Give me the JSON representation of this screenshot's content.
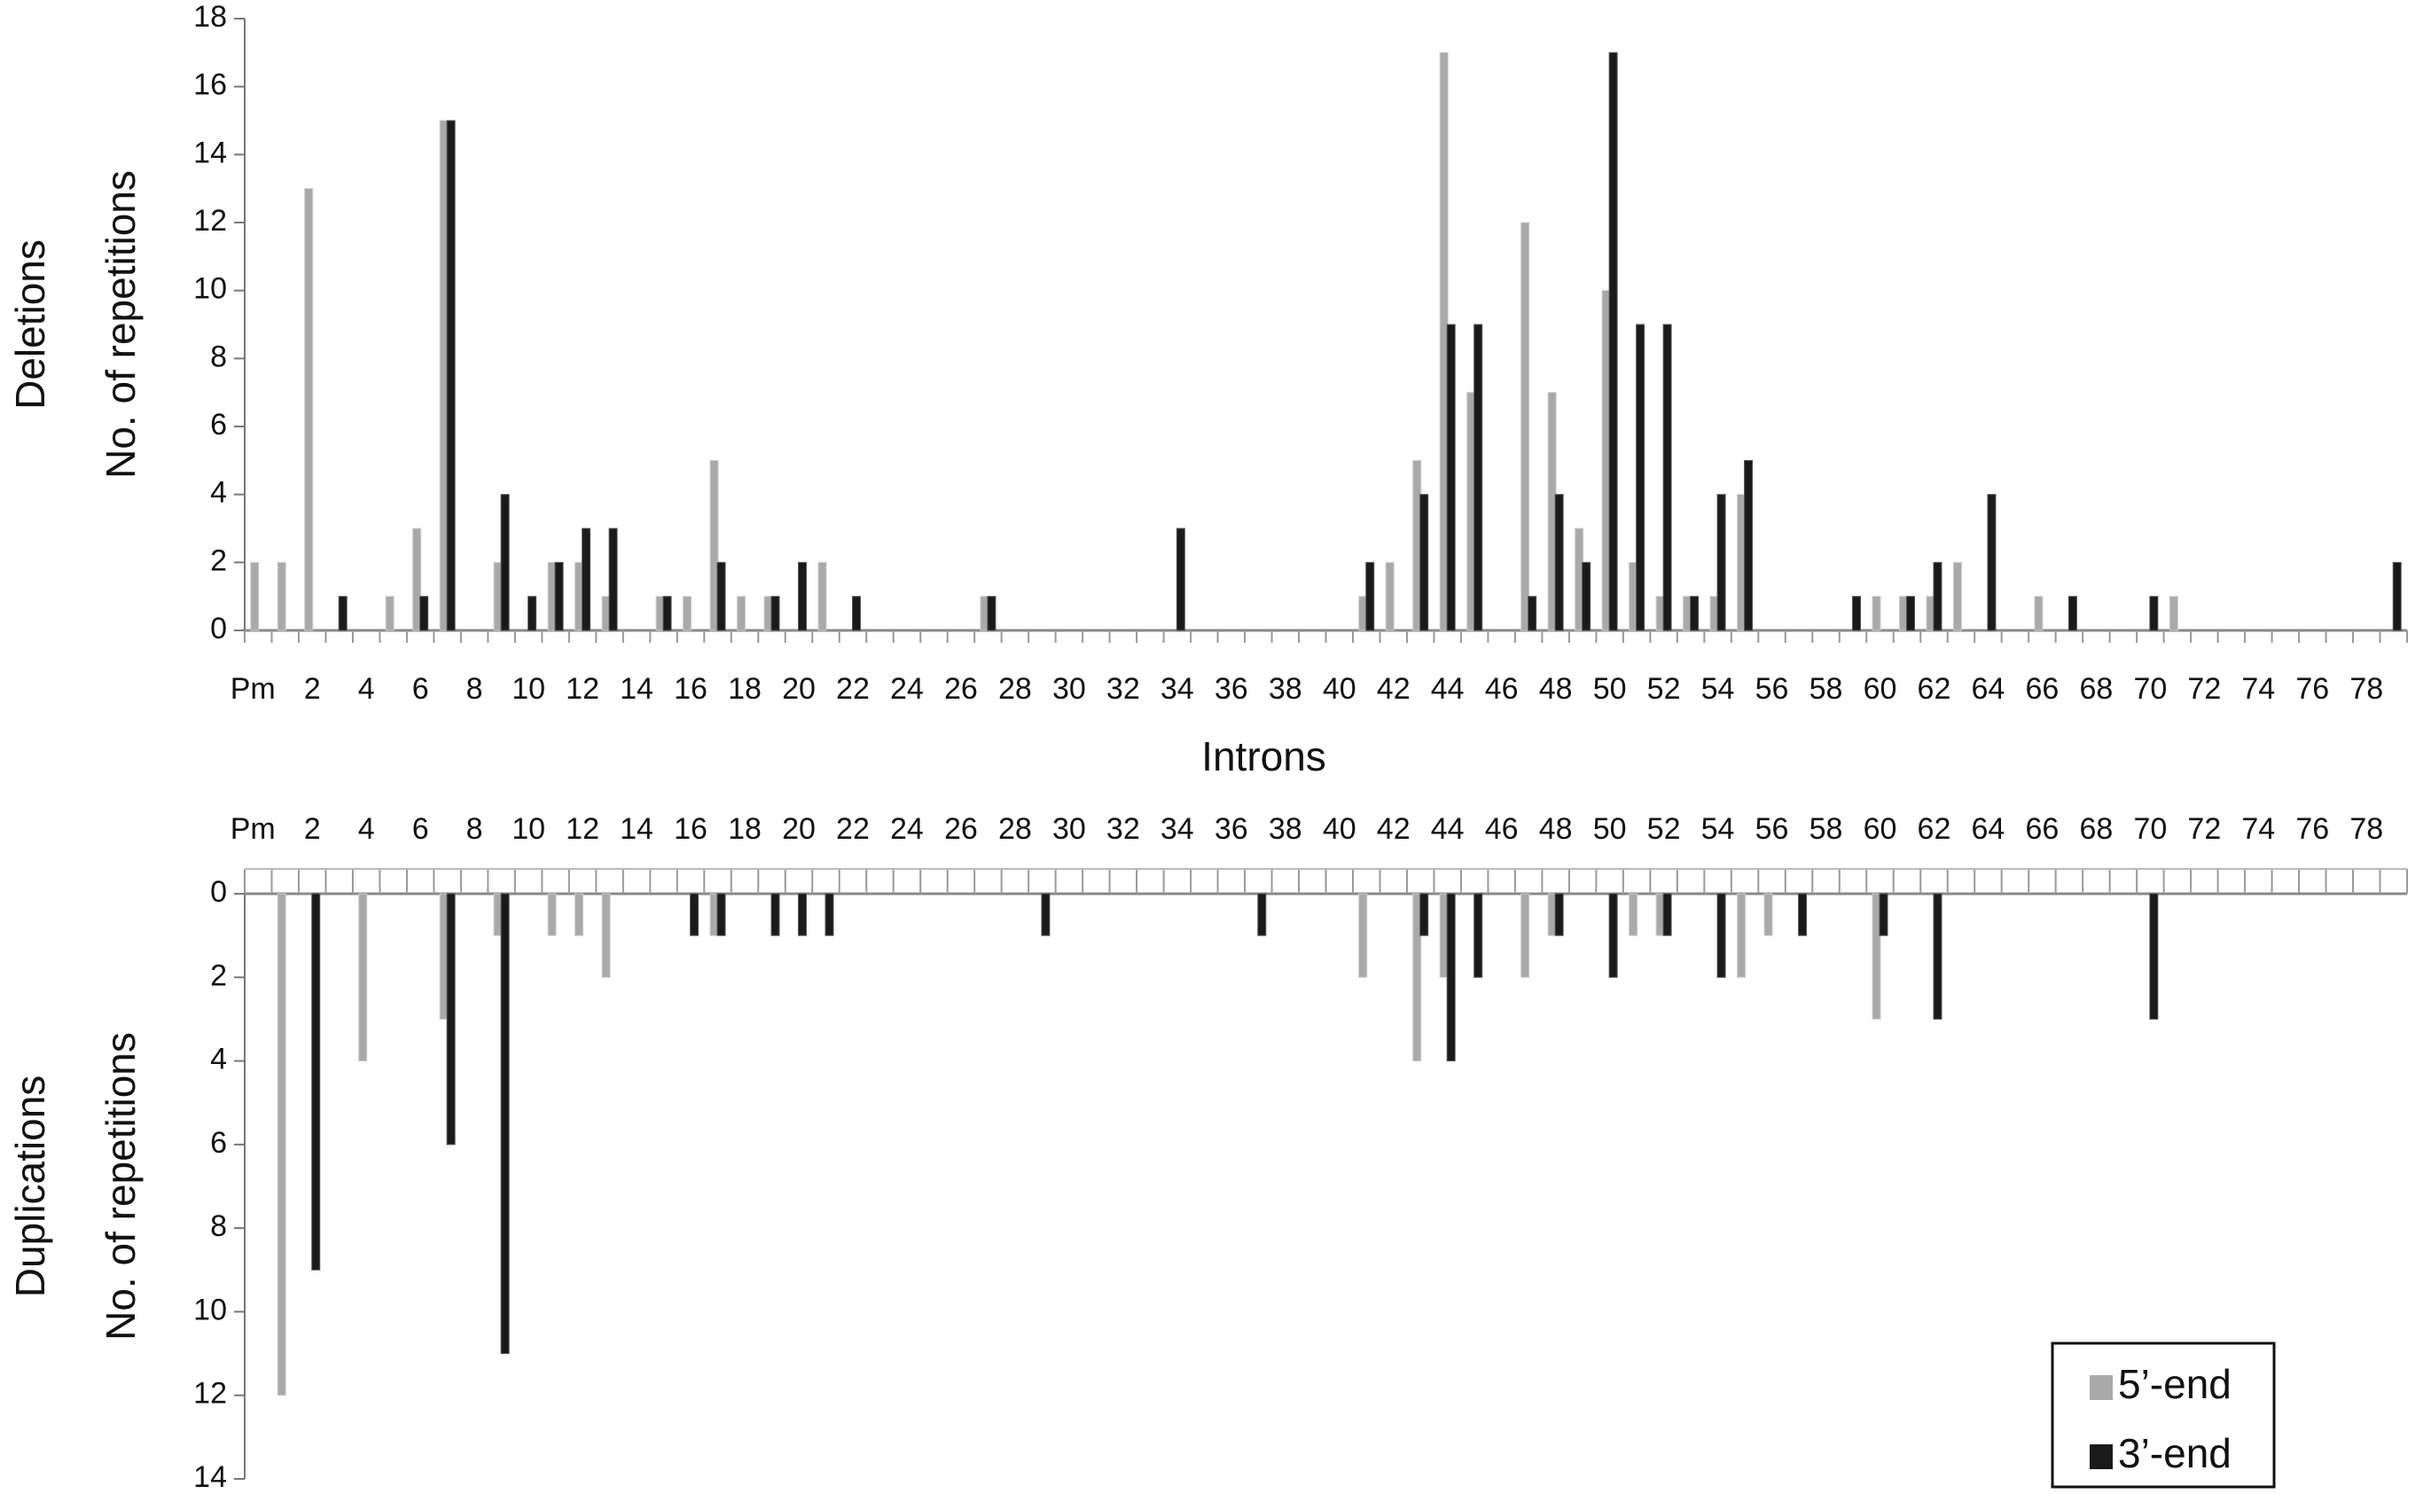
{
  "chart_data": [
    {
      "type": "bar",
      "ylabel_group": "Deletions",
      "ylabel": "No. of repetitions",
      "xlabel": "Introns",
      "categories": [
        "Pm",
        null,
        "2",
        null,
        "4",
        null,
        "6",
        null,
        "8",
        null,
        "10",
        null,
        "12",
        null,
        "14",
        null,
        "16",
        null,
        "18",
        null,
        "20",
        null,
        "22",
        null,
        "24",
        null,
        "26",
        null,
        "28",
        null,
        "30",
        null,
        "32",
        null,
        "34",
        null,
        "36",
        null,
        "38",
        null,
        "40",
        null,
        "42",
        null,
        "44",
        null,
        "46",
        null,
        "48",
        null,
        "50",
        null,
        "52",
        null,
        "54",
        null,
        "56",
        null,
        "58",
        null,
        "60",
        null,
        "62",
        null,
        "64",
        null,
        "66",
        null,
        "68",
        null,
        "70",
        null,
        "72",
        null,
        "74",
        null,
        "76",
        null,
        "78",
        null
      ],
      "series": [
        {
          "color": "#a9a9a9",
          "values": [
            2,
            2,
            13,
            0,
            0,
            1,
            3,
            15,
            0,
            2,
            0,
            2,
            2,
            1,
            0,
            1,
            1,
            5,
            1,
            1,
            0,
            2,
            0,
            0,
            0,
            0,
            0,
            1,
            0,
            0,
            0,
            0,
            0,
            0,
            0,
            0,
            0,
            0,
            0,
            0,
            0,
            1,
            2,
            5,
            17,
            7,
            0,
            12,
            7,
            3,
            10,
            2,
            1,
            1,
            1,
            4,
            0,
            0,
            0,
            0,
            1,
            1,
            1,
            2,
            0,
            0,
            1,
            0,
            0,
            0,
            0,
            1,
            0,
            0,
            0,
            0,
            0,
            0,
            0,
            0
          ]
        },
        {
          "color": "#1a1a1a",
          "values": [
            0,
            0,
            0,
            1,
            0,
            0,
            1,
            15,
            0,
            4,
            1,
            2,
            3,
            3,
            0,
            1,
            0,
            2,
            0,
            1,
            2,
            0,
            1,
            0,
            0,
            0,
            0,
            1,
            0,
            0,
            0,
            0,
            0,
            0,
            3,
            0,
            0,
            0,
            0,
            0,
            0,
            2,
            0,
            4,
            9,
            9,
            0,
            1,
            4,
            2,
            17,
            9,
            9,
            1,
            4,
            5,
            0,
            0,
            0,
            1,
            0,
            1,
            2,
            0,
            4,
            0,
            0,
            1,
            0,
            0,
            1,
            0,
            0,
            0,
            0,
            0,
            0,
            0,
            0,
            2
          ]
        }
      ],
      "ylim": [
        0,
        18
      ],
      "yticks": [
        0,
        2,
        4,
        6,
        8,
        10,
        12,
        14,
        16,
        18
      ]
    },
    {
      "type": "bar",
      "ylabel_group": "Duplications",
      "ylabel": "No. of repetitions",
      "y_inverted": true,
      "xaxis_position": "top",
      "categories": [
        "Pm",
        null,
        "2",
        null,
        "4",
        null,
        "6",
        null,
        "8",
        null,
        "10",
        null,
        "12",
        null,
        "14",
        null,
        "16",
        null,
        "18",
        null,
        "20",
        null,
        "22",
        null,
        "24",
        null,
        "26",
        null,
        "28",
        null,
        "30",
        null,
        "32",
        null,
        "34",
        null,
        "36",
        null,
        "38",
        null,
        "40",
        null,
        "42",
        null,
        "44",
        null,
        "46",
        null,
        "48",
        null,
        "50",
        null,
        "52",
        null,
        "54",
        null,
        "56",
        null,
        "58",
        null,
        "60",
        null,
        "62",
        null,
        "64",
        null,
        "66",
        null,
        "68",
        null,
        "70",
        null,
        "72",
        null,
        "74",
        null,
        "76",
        null,
        "78",
        null
      ],
      "series": [
        {
          "name": "5’-end",
          "color": "#a9a9a9",
          "values": [
            0,
            12,
            0,
            0,
            4,
            0,
            0,
            3,
            0,
            1,
            0,
            1,
            1,
            2,
            0,
            0,
            0,
            1,
            0,
            0,
            0,
            0,
            0,
            0,
            0,
            0,
            0,
            0,
            0,
            0,
            0,
            0,
            0,
            0,
            0,
            0,
            0,
            0,
            0,
            0,
            0,
            2,
            0,
            4,
            2,
            0,
            0,
            2,
            1,
            0,
            0,
            1,
            1,
            0,
            0,
            2,
            1,
            0,
            0,
            0,
            3,
            0,
            0,
            0,
            0,
            0,
            0,
            0,
            0,
            0,
            0,
            0,
            0,
            0,
            0,
            0,
            0,
            0,
            0,
            0
          ]
        },
        {
          "name": "3’-end",
          "color": "#1a1a1a",
          "values": [
            0,
            0,
            9,
            0,
            0,
            0,
            0,
            6,
            0,
            11,
            0,
            0,
            0,
            0,
            0,
            0,
            1,
            1,
            0,
            1,
            1,
            1,
            0,
            0,
            0,
            0,
            0,
            0,
            0,
            1,
            0,
            0,
            0,
            0,
            0,
            0,
            0,
            1,
            0,
            0,
            0,
            0,
            0,
            1,
            4,
            2,
            0,
            0,
            1,
            0,
            2,
            0,
            1,
            0,
            2,
            0,
            0,
            1,
            0,
            0,
            1,
            0,
            3,
            0,
            0,
            0,
            0,
            0,
            0,
            0,
            3,
            0,
            0,
            0,
            0,
            0,
            0,
            0,
            0,
            0
          ]
        }
      ],
      "ylim": [
        0,
        14
      ],
      "yticks": [
        0,
        2,
        4,
        6,
        8,
        10,
        12,
        14
      ],
      "legend": "lower right"
    }
  ]
}
